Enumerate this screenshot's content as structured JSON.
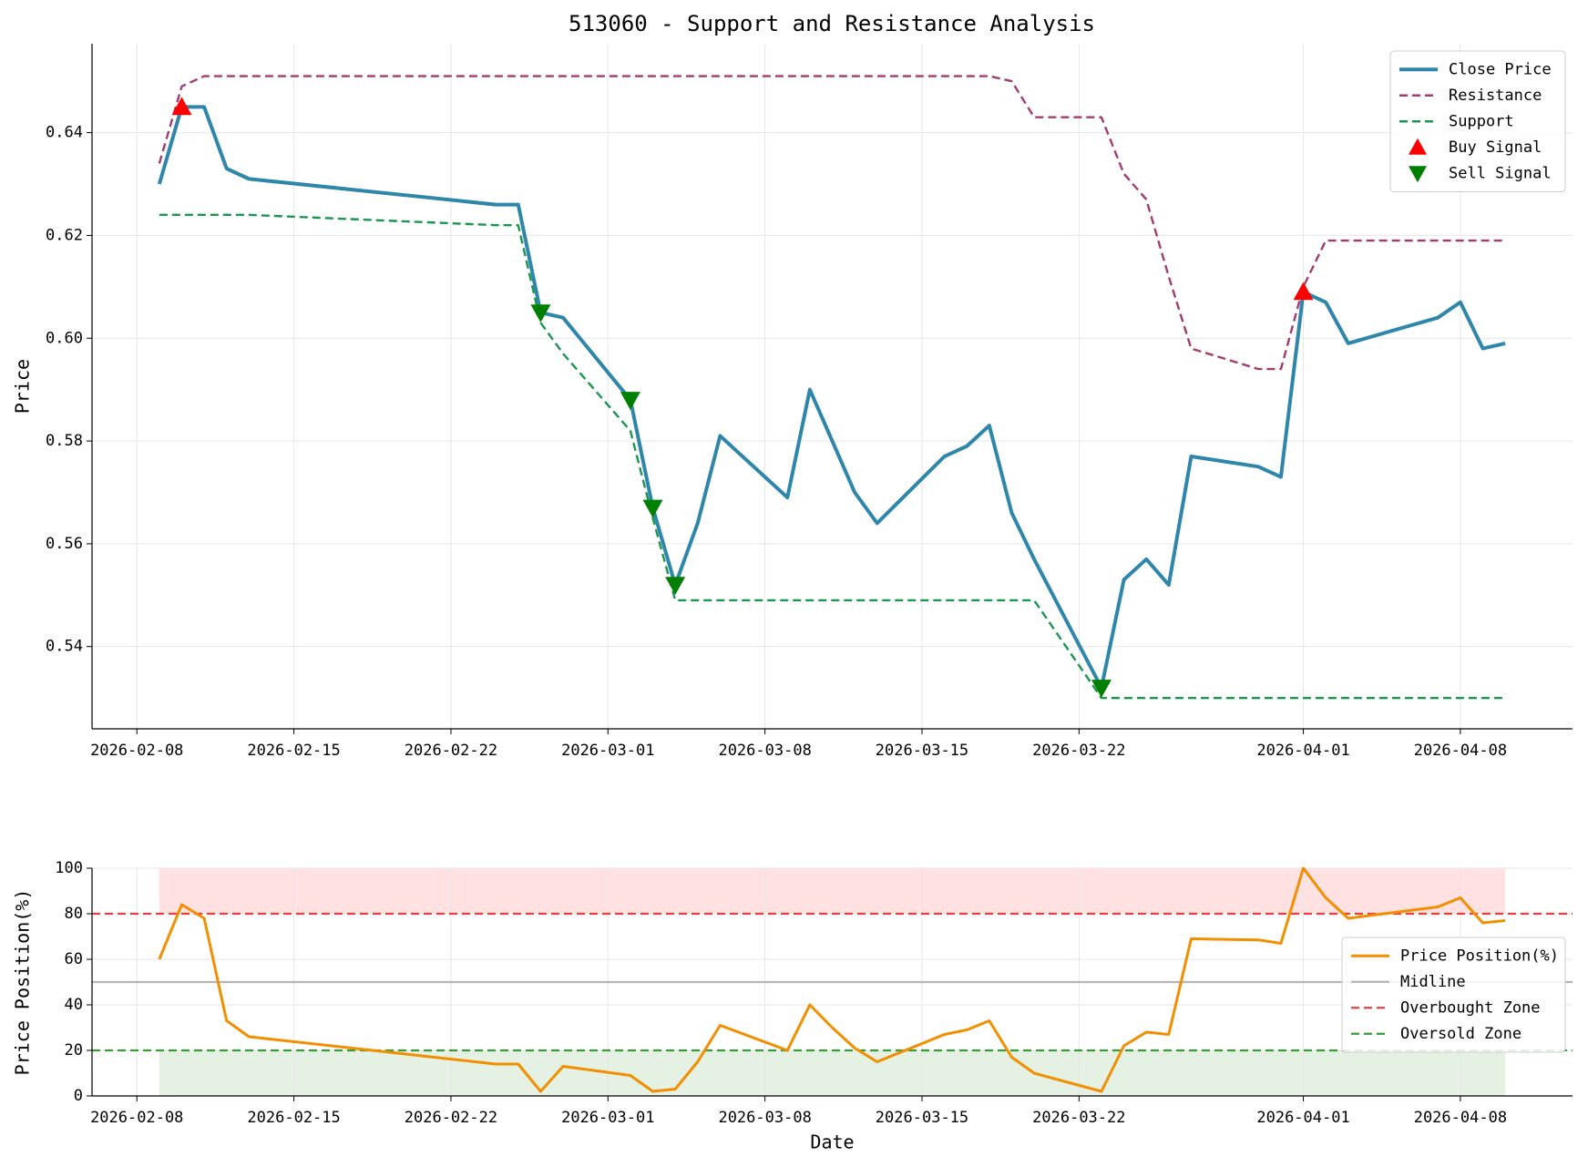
{
  "chart_data": [
    {
      "type": "line",
      "title": "513060 - Support and Resistance Analysis",
      "ylabel": "Price",
      "x": [
        "2026-02-09",
        "2026-02-10",
        "2026-02-11",
        "2026-02-12",
        "2026-02-13",
        "2026-02-24",
        "2026-02-25",
        "2026-02-26",
        "2026-02-27",
        "2026-03-02",
        "2026-03-03",
        "2026-03-04",
        "2026-03-05",
        "2026-03-06",
        "2026-03-09",
        "2026-03-10",
        "2026-03-11",
        "2026-03-12",
        "2026-03-13",
        "2026-03-16",
        "2026-03-17",
        "2026-03-18",
        "2026-03-19",
        "2026-03-20",
        "2026-03-23",
        "2026-03-24",
        "2026-03-25",
        "2026-03-26",
        "2026-03-27",
        "2026-03-30",
        "2026-03-31",
        "2026-04-01",
        "2026-04-02",
        "2026-04-03",
        "2026-04-07",
        "2026-04-08",
        "2026-04-09",
        "2026-04-10"
      ],
      "series": [
        {
          "name": "Close Price",
          "color": "#2e86ab",
          "style": "solid",
          "width": 4,
          "values": [
            0.63,
            0.645,
            0.645,
            0.633,
            0.631,
            0.626,
            0.626,
            0.605,
            0.604,
            0.588,
            0.567,
            0.552,
            0.564,
            0.581,
            0.569,
            0.59,
            0.58,
            0.57,
            0.564,
            0.577,
            0.579,
            0.583,
            0.566,
            0.557,
            0.532,
            0.553,
            0.557,
            0.552,
            0.577,
            0.575,
            0.573,
            0.609,
            0.607,
            0.599,
            0.604,
            0.607,
            0.598,
            0.599
          ]
        },
        {
          "name": "Resistance",
          "color": "#a23b72",
          "style": "dashed",
          "width": 2.4,
          "values": [
            0.634,
            0.649,
            0.651,
            0.651,
            0.651,
            0.651,
            0.651,
            0.651,
            0.651,
            0.651,
            0.651,
            0.651,
            0.651,
            0.651,
            0.651,
            0.651,
            0.651,
            0.651,
            0.651,
            0.651,
            0.651,
            0.651,
            0.65,
            0.643,
            0.643,
            0.632,
            0.627,
            0.612,
            0.598,
            0.594,
            0.594,
            0.61,
            0.619,
            0.619,
            0.619,
            0.619,
            0.619,
            0.619
          ]
        },
        {
          "name": "Support",
          "color": "#1b9650",
          "style": "dashed",
          "width": 2.4,
          "values": [
            0.624,
            0.624,
            0.624,
            0.624,
            0.624,
            0.622,
            0.622,
            0.603,
            0.597,
            0.582,
            0.565,
            0.549,
            0.549,
            0.549,
            0.549,
            0.549,
            0.549,
            0.549,
            0.549,
            0.549,
            0.549,
            0.549,
            0.549,
            0.549,
            0.53,
            0.53,
            0.53,
            0.53,
            0.53,
            0.53,
            0.53,
            0.53,
            0.53,
            0.53,
            0.53,
            0.53,
            0.53,
            0.53
          ]
        },
        {
          "name": "Buy Signal",
          "color": "#ff0000",
          "style": "marker",
          "marker": "triangle-up",
          "values": [
            null,
            0.645,
            null,
            null,
            null,
            null,
            null,
            null,
            null,
            null,
            null,
            null,
            null,
            null,
            null,
            null,
            null,
            null,
            null,
            null,
            null,
            null,
            null,
            null,
            null,
            null,
            null,
            null,
            null,
            null,
            null,
            0.609,
            null,
            null,
            null,
            null,
            null,
            null
          ]
        },
        {
          "name": "Sell Signal",
          "color": "#008000",
          "style": "marker",
          "marker": "triangle-down",
          "values": [
            null,
            null,
            null,
            null,
            null,
            null,
            null,
            0.605,
            null,
            0.588,
            0.567,
            0.552,
            null,
            null,
            null,
            null,
            null,
            null,
            null,
            null,
            null,
            null,
            null,
            null,
            0.532,
            null,
            null,
            null,
            null,
            null,
            null,
            null,
            null,
            null,
            null,
            null,
            null,
            null
          ]
        }
      ],
      "xlim": [
        "2026-02-06",
        "2026-04-13"
      ],
      "xticks": [
        "2026-02-08",
        "2026-02-15",
        "2026-02-22",
        "2026-03-01",
        "2026-03-08",
        "2026-03-15",
        "2026-03-22",
        "2026-04-01",
        "2026-04-08"
      ],
      "ylim": [
        0.524,
        0.6573
      ],
      "yticks": [
        0.54,
        0.56,
        0.58,
        {
          "value": 0.6,
          "label": "0.60"
        },
        0.62,
        0.64
      ],
      "grid": true,
      "legend": "upper right"
    },
    {
      "type": "line",
      "xlabel": "Date",
      "ylabel": "Price Position(%)",
      "x": [
        "2026-02-09",
        "2026-02-10",
        "2026-02-11",
        "2026-02-12",
        "2026-02-13",
        "2026-02-24",
        "2026-02-25",
        "2026-02-26",
        "2026-02-27",
        "2026-03-02",
        "2026-03-03",
        "2026-03-04",
        "2026-03-05",
        "2026-03-06",
        "2026-03-09",
        "2026-03-10",
        "2026-03-11",
        "2026-03-12",
        "2026-03-13",
        "2026-03-16",
        "2026-03-17",
        "2026-03-18",
        "2026-03-19",
        "2026-03-20",
        "2026-03-23",
        "2026-03-24",
        "2026-03-25",
        "2026-03-26",
        "2026-03-27",
        "2026-03-30",
        "2026-03-31",
        "2026-04-01",
        "2026-04-02",
        "2026-04-03",
        "2026-04-07",
        "2026-04-08",
        "2026-04-09",
        "2026-04-10"
      ],
      "series": [
        {
          "name": "Price Position(%)",
          "color": "#f18f01",
          "style": "solid",
          "width": 3,
          "values": [
            60,
            84,
            78,
            33,
            26,
            14,
            14,
            2,
            13,
            9,
            2,
            3,
            15,
            31,
            20,
            40,
            30,
            21,
            15,
            27,
            29,
            33,
            17,
            10,
            2,
            22,
            28,
            27,
            69,
            68.5,
            67,
            100,
            87,
            78,
            83,
            87,
            76,
            77
          ]
        }
      ],
      "hlines": [
        {
          "name": "Midline",
          "value": 50,
          "color": "#b5b5b5",
          "style": "solid"
        },
        {
          "name": "Overbought Zone",
          "value": 80,
          "color": "#e84040",
          "style": "dashed"
        },
        {
          "name": "Oversold Zone",
          "value": 20,
          "color": "#3a9a3a",
          "style": "dashed"
        }
      ],
      "bands": [
        {
          "range": [
            80,
            100
          ],
          "color": "#ffe1e1"
        },
        {
          "range": [
            0,
            20
          ],
          "color": "#e4f1e3"
        }
      ],
      "xlim": [
        "2026-02-06",
        "2026-04-13"
      ],
      "xticks": [
        "2026-02-08",
        "2026-02-15",
        "2026-02-22",
        "2026-03-01",
        "2026-03-08",
        "2026-03-15",
        "2026-03-22",
        "2026-04-01",
        "2026-04-08"
      ],
      "ylim": [
        0,
        100
      ],
      "yticks": [
        0,
        20,
        40,
        60,
        80,
        100
      ],
      "grid": true,
      "legend": "center right"
    }
  ]
}
